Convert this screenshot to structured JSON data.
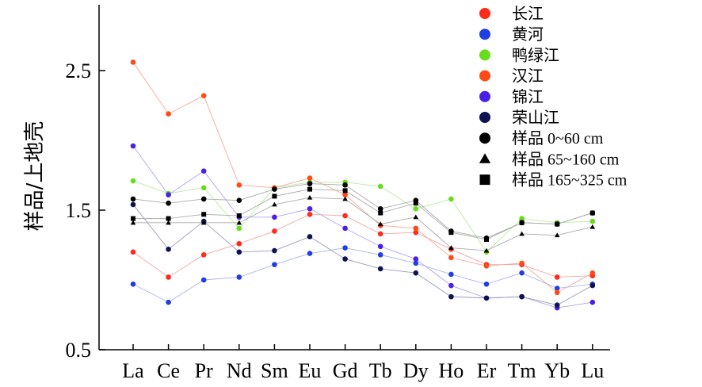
{
  "chart_data": {
    "type": "line",
    "ylabel": "样品/上地壳",
    "ylim": [
      0.5,
      2.8
    ],
    "yticks": [
      "0.5",
      "1.5",
      "2.5"
    ],
    "ytick_values": [
      0.5,
      1.5,
      2.5
    ],
    "categories": [
      "La",
      "Ce",
      "Pr",
      "Nd",
      "Sm",
      "Eu",
      "Gd",
      "Tb",
      "Dy",
      "Ho",
      "Er",
      "Tm",
      "Yb",
      "Lu"
    ],
    "legend_position": "top-right",
    "grid": false,
    "series": [
      {
        "name": "长江",
        "marker": "circle",
        "color": "#ff2a1a",
        "line_color": "#f4a6a6",
        "values": [
          1.2,
          1.02,
          1.18,
          1.26,
          1.35,
          1.47,
          1.46,
          1.33,
          1.34,
          1.22,
          1.11,
          1.11,
          1.02,
          1.03
        ]
      },
      {
        "name": "黄河",
        "marker": "circle",
        "color": "#1f3fe0",
        "line_color": "#a8b4f2",
        "values": [
          0.97,
          0.84,
          1.0,
          1.02,
          1.11,
          1.19,
          1.23,
          1.18,
          1.12,
          1.04,
          0.97,
          1.05,
          0.94,
          0.97
        ]
      },
      {
        "name": "鸭绿江",
        "marker": "circle",
        "color": "#66dd1a",
        "line_color": "#bde9a3",
        "values": [
          1.71,
          1.62,
          1.66,
          1.37,
          1.66,
          1.7,
          1.7,
          1.67,
          1.51,
          1.58,
          1.2,
          1.44,
          1.41,
          1.42
        ]
      },
      {
        "name": "汉江",
        "marker": "circle",
        "color": "#ff4a14",
        "line_color": "#f7a99a",
        "values": [
          2.56,
          2.19,
          2.32,
          1.68,
          1.66,
          1.73,
          1.61,
          1.39,
          1.37,
          1.16,
          1.1,
          1.12,
          0.91,
          1.05
        ]
      },
      {
        "name": "锦江",
        "marker": "circle",
        "color": "#4a1fe8",
        "line_color": "#b1a4ef",
        "values": [
          1.96,
          1.61,
          1.78,
          1.45,
          1.45,
          1.51,
          1.37,
          1.24,
          1.15,
          0.96,
          0.87,
          0.88,
          0.8,
          0.84
        ]
      },
      {
        "name": "荣山江",
        "marker": "circle",
        "color": "#0e1250",
        "line_color": "#9a9db8",
        "values": [
          1.54,
          1.22,
          1.42,
          1.2,
          1.21,
          1.31,
          1.15,
          1.08,
          1.05,
          0.88,
          0.87,
          0.88,
          0.82,
          0.96
        ]
      },
      {
        "name": "样品 0~60 cm",
        "marker": "circle",
        "color": "#000000",
        "line_color": "#aaaaaa",
        "values": [
          1.58,
          1.55,
          1.58,
          1.57,
          1.65,
          1.69,
          1.68,
          1.51,
          1.57,
          1.35,
          1.3,
          1.41,
          1.4,
          1.48
        ]
      },
      {
        "name": "样品 65~160 cm",
        "marker": "triangle",
        "color": "#000000",
        "line_color": "#aaaaaa",
        "values": [
          1.41,
          1.41,
          1.41,
          1.41,
          1.54,
          1.59,
          1.58,
          1.4,
          1.45,
          1.23,
          1.21,
          1.33,
          1.32,
          1.38
        ]
      },
      {
        "name": "样品 165~325 cm",
        "marker": "square",
        "color": "#000000",
        "line_color": "#aaaaaa",
        "values": [
          1.44,
          1.44,
          1.47,
          1.46,
          1.6,
          1.65,
          1.64,
          1.48,
          1.55,
          1.34,
          1.29,
          1.41,
          1.4,
          1.48
        ]
      }
    ]
  }
}
